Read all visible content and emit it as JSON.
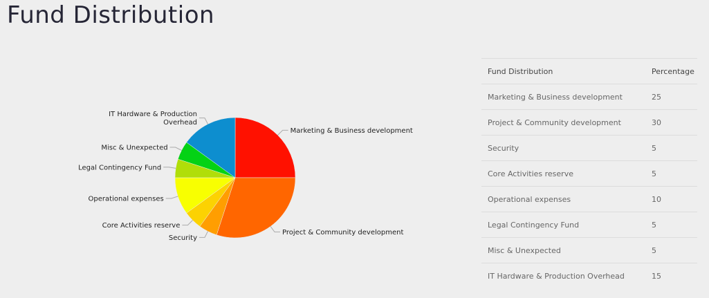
{
  "page": {
    "title": "Fund Distribution"
  },
  "table": {
    "headers": [
      "Fund Distribution",
      "Percentage"
    ],
    "rows": [
      {
        "name": "Marketing & Business development",
        "value": "25"
      },
      {
        "name": "Project & Community development",
        "value": "30"
      },
      {
        "name": "Security",
        "value": "5"
      },
      {
        "name": "Core Activities reserve",
        "value": "5"
      },
      {
        "name": "Operational expenses",
        "value": "10"
      },
      {
        "name": "Legal Contingency Fund",
        "value": "5"
      },
      {
        "name": "Misc & Unexpected",
        "value": "5"
      },
      {
        "name": "IT Hardware & Production Overhead",
        "value": "15"
      }
    ]
  },
  "chart_data": {
    "type": "pie",
    "categories": [
      "Marketing & Business development",
      "Project & Community development",
      "Security",
      "Core Activities reserve",
      "Operational expenses",
      "Legal Contingency Fund",
      "Misc & Unexpected",
      "IT Hardware & Production Overhead"
    ],
    "values": [
      25,
      30,
      5,
      5,
      10,
      5,
      5,
      15
    ],
    "colors": [
      "#ff1100",
      "#ff6600",
      "#ff9e01",
      "#fcd202",
      "#f8ff01",
      "#b0de09",
      "#04d215",
      "#0d8ecf"
    ],
    "label_lines": [
      [
        "Marketing & Business development"
      ],
      [
        "Project & Community development"
      ],
      [
        "Security"
      ],
      [
        "Core Activities reserve"
      ],
      [
        "Operational expenses"
      ],
      [
        "Legal Contingency Fund"
      ],
      [
        "Misc & Unexpected"
      ],
      [
        "IT Hardware & Production",
        "Overhead"
      ]
    ],
    "start_angle": "12 o'clock",
    "direction": "clockwise"
  }
}
